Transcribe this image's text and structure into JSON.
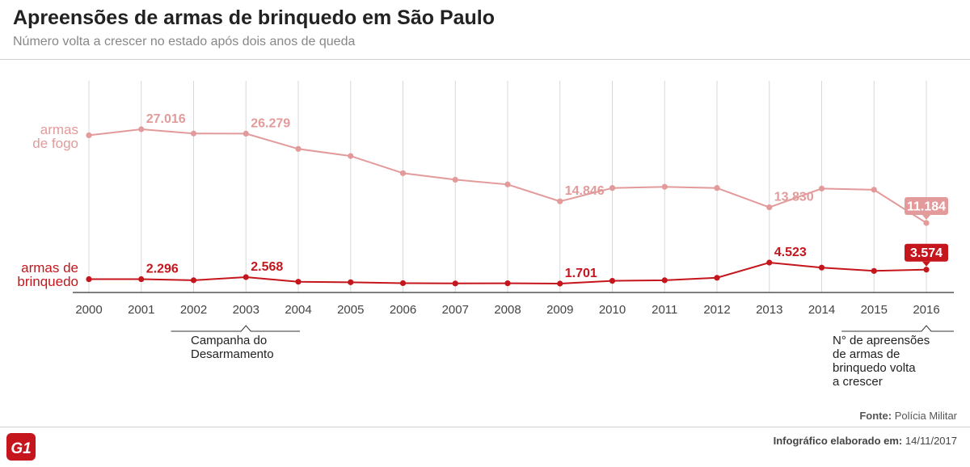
{
  "header": {
    "title": "Apreensões de armas de brinquedo em São Paulo",
    "subtitle": "Número volta a crescer no estado após dois anos de queda"
  },
  "chart_data": {
    "type": "line",
    "title": "Apreensões de armas de brinquedo em São Paulo",
    "subtitle": "Número volta a crescer no estado após dois anos de queda",
    "categories": [
      "2000",
      "2001",
      "2002",
      "2003",
      "2004",
      "2005",
      "2006",
      "2007",
      "2008",
      "2009",
      "2010",
      "2011",
      "2012",
      "2013",
      "2014",
      "2015",
      "2016"
    ],
    "series": [
      {
        "name": "armas de fogo",
        "label_lines": [
          "armas",
          "de fogo"
        ],
        "color": "#e39a9a",
        "values": [
          26000,
          27016,
          26300,
          26279,
          23700,
          22500,
          19600,
          18500,
          17700,
          14846,
          17100,
          17300,
          17100,
          13830,
          17000,
          16800,
          11184
        ],
        "data_labels": [
          {
            "index": 1,
            "text": "27.016"
          },
          {
            "index": 3,
            "text": "26.279"
          },
          {
            "index": 9,
            "text": "14.846"
          },
          {
            "index": 13,
            "text": "13.830"
          },
          {
            "index": 16,
            "text": "11.184",
            "boxed": true
          }
        ]
      },
      {
        "name": "armas de brinquedo",
        "label_lines": [
          "armas de",
          "brinquedo"
        ],
        "color": "#c4161c",
        "values": [
          2296,
          2296,
          2150,
          2568,
          1950,
          1880,
          1760,
          1720,
          1740,
          1701,
          2070,
          2150,
          2480,
          4523,
          3850,
          3400,
          3574
        ],
        "data_labels": [
          {
            "index": 1,
            "text": "2.296"
          },
          {
            "index": 3,
            "text": "2.568"
          },
          {
            "index": 9,
            "text": "1.701"
          },
          {
            "index": 13,
            "text": "4.523"
          },
          {
            "index": 16,
            "text": "3.574",
            "boxed": true
          }
        ]
      }
    ],
    "annotations": [
      {
        "from_index": 2,
        "to_index": 4,
        "pointer_index": 3,
        "lines": [
          "Campanha do",
          "Desarmamento"
        ]
      },
      {
        "from_index": 15,
        "to_index": 17,
        "pointer_index": 16,
        "lines": [
          "N° de apreensões",
          "de armas de",
          "brinquedo volta",
          "a crescer"
        ]
      }
    ],
    "grid": "vertical"
  },
  "footer": {
    "source_label": "Fonte:",
    "source_value": "Polícia Militar",
    "credit_label": "Infográfico elaborado em:",
    "credit_value": "14/11/2017",
    "logo_text": "G1"
  },
  "colors": {
    "firearms": "#e39a9a",
    "toy": "#c4161c",
    "grid": "#d8d8d8",
    "logo": "#c4161c"
  }
}
